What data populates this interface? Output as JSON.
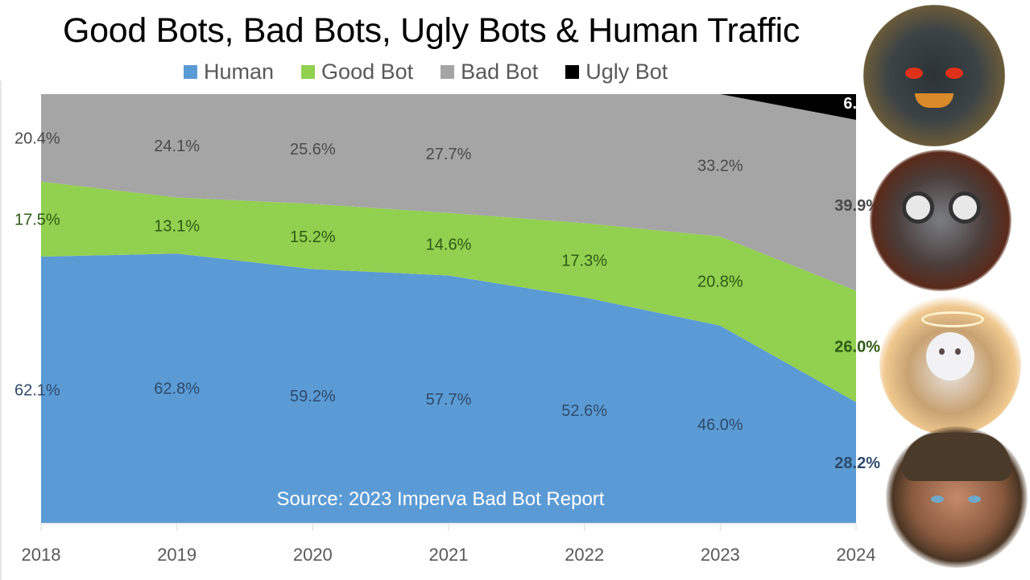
{
  "title": "Good Bots, Bad Bots, Ugly Bots & Human Traffic",
  "source_note": "Source: 2023 Imperva Bad Bot Report",
  "legend": [
    {
      "label": "Human",
      "color": "#5b9bd5"
    },
    {
      "label": "Good Bot",
      "color": "#92d050"
    },
    {
      "label": "Bad Bot",
      "color": "#a5a5a5"
    },
    {
      "label": "Ugly Bot",
      "color": "#000000"
    }
  ],
  "avatars": [
    {
      "name": "ugly-bot-demon",
      "represents": "Ugly Bot"
    },
    {
      "name": "bad-bot-owl",
      "represents": "Bad Bot"
    },
    {
      "name": "good-bot-angel",
      "represents": "Good Bot"
    },
    {
      "name": "human-face",
      "represents": "Human"
    }
  ],
  "chart_data": {
    "type": "area",
    "stacked": "percent",
    "title": "Good Bots, Bad Bots, Ugly Bots & Human Traffic",
    "xlabel": "",
    "ylabel": "",
    "ylim": [
      0,
      100
    ],
    "grid": false,
    "legend_position": "top",
    "categories": [
      "2018",
      "2019",
      "2020",
      "2021",
      "2022",
      "2023",
      "2024"
    ],
    "series": [
      {
        "name": "Human",
        "color": "#5b9bd5",
        "values": [
          62.1,
          62.8,
          59.2,
          57.7,
          52.6,
          46.0,
          28.2
        ],
        "labels": [
          "62.1%",
          "62.8%",
          "59.2%",
          "57.7%",
          "52.6%",
          "46.0%",
          "28.2%"
        ]
      },
      {
        "name": "Good Bot",
        "color": "#92d050",
        "values": [
          17.5,
          13.1,
          15.2,
          14.6,
          17.3,
          20.8,
          26.0
        ],
        "labels": [
          "17.5%",
          "13.1%",
          "15.2%",
          "14.6%",
          "17.3%",
          "20.8%",
          "26.0%"
        ]
      },
      {
        "name": "Bad Bot",
        "color": "#a5a5a5",
        "values": [
          20.4,
          24.1,
          25.6,
          27.7,
          30.1,
          33.2,
          39.9
        ],
        "labels": [
          "20.4%",
          "24.1%",
          "25.6%",
          "27.7%",
          "",
          "33.2%",
          "39.9%"
        ]
      },
      {
        "name": "Ugly Bot",
        "color": "#000000",
        "values": [
          0,
          0,
          0,
          0,
          0,
          0,
          6.0
        ],
        "labels": [
          "",
          "",
          "",
          "",
          "",
          "",
          "6.0%"
        ]
      }
    ],
    "annotations": [
      "Source: 2023 Imperva Bad Bot Report"
    ]
  }
}
